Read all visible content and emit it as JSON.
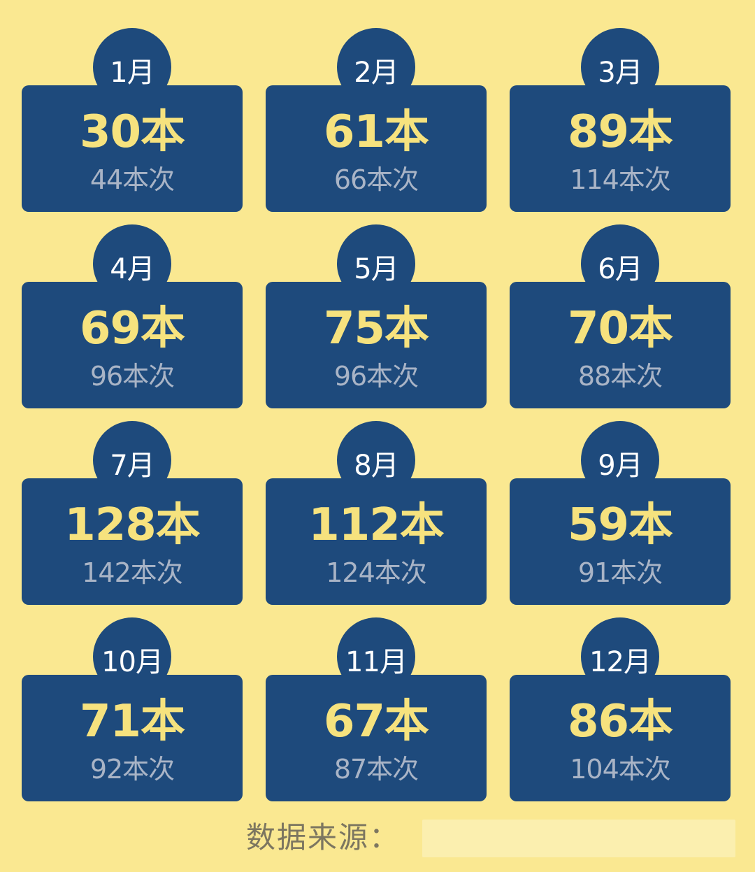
{
  "months": [
    {
      "month": "1月",
      "books": "30本",
      "times": "44本次"
    },
    {
      "month": "2月",
      "books": "61本",
      "times": "66本次"
    },
    {
      "month": "3月",
      "books": "89本",
      "times": "114本次"
    },
    {
      "month": "4月",
      "books": "69本",
      "times": "96本次"
    },
    {
      "month": "5月",
      "books": "75本",
      "times": "96本次"
    },
    {
      "month": "6月",
      "books": "70本",
      "times": "88本次"
    },
    {
      "month": "7月",
      "books": "128本",
      "times": "142本次"
    },
    {
      "month": "8月",
      "books": "112本",
      "times": "124本次"
    },
    {
      "month": "9月",
      "books": "59本",
      "times": "91本次"
    },
    {
      "month": "10月",
      "books": "71本",
      "times": "92本次"
    },
    {
      "month": "11月",
      "books": "67本",
      "times": "87本次"
    },
    {
      "month": "12月",
      "books": "86本",
      "times": "104本次"
    }
  ],
  "footer": {
    "source_label": "数据来源："
  },
  "colors": {
    "background": "#FAE891",
    "card": "#1E4A7C",
    "books_text": "#F6E27E",
    "times_text": "#A9B4C6",
    "month_text": "#FFFFFF"
  }
}
